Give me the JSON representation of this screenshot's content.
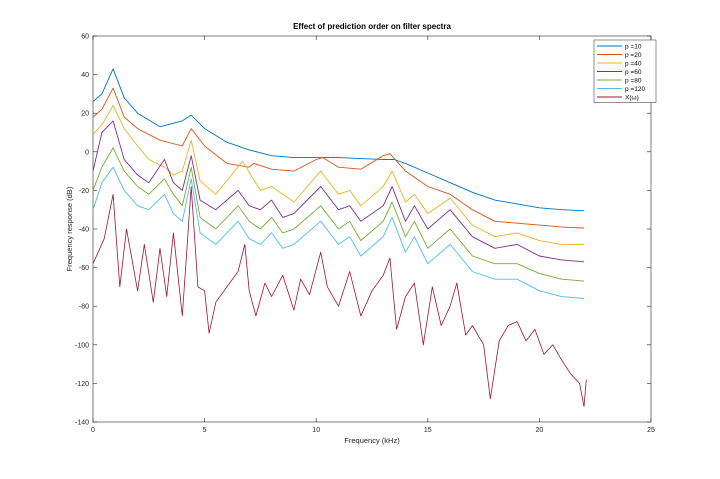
{
  "chart_data": {
    "type": "line",
    "title": "Effect of prediction order on filter spectra",
    "xlabel": "Frequency (kHz)",
    "ylabel": "Frequency response (dB)",
    "xlim": [
      0,
      25
    ],
    "ylim": [
      -140,
      60
    ],
    "xticks": [
      0,
      5,
      10,
      15,
      20,
      25
    ],
    "yticks": [
      -140,
      -120,
      -100,
      -80,
      -60,
      -40,
      -20,
      0,
      20,
      40,
      60
    ],
    "grid": false,
    "legend_position": "top-right",
    "series": [
      {
        "name": "p =10",
        "color": "#0072BD",
        "x": [
          0,
          0.4,
          0.9,
          1.4,
          2,
          3,
          4,
          4.4,
          5,
          6,
          7,
          8,
          9,
          10,
          11,
          12,
          13,
          13.5,
          14,
          15,
          16,
          17,
          18,
          19,
          20,
          21,
          22
        ],
        "y": [
          26,
          30,
          43,
          28,
          20,
          13,
          16,
          19,
          12,
          5,
          1,
          -2,
          -3,
          -3,
          -3,
          -3.5,
          -4,
          -4,
          -6,
          -11,
          -16,
          -21,
          -25,
          -27,
          -29,
          -30,
          -30.5
        ]
      },
      {
        "name": "p =20",
        "color": "#D95319",
        "x": [
          0,
          0.4,
          0.9,
          1.4,
          2,
          3,
          4,
          4.4,
          5,
          6,
          7,
          7.2,
          8,
          9,
          10,
          10.3,
          11,
          12,
          13,
          13.3,
          14,
          15,
          16,
          17,
          18,
          19,
          20,
          21,
          22
        ],
        "y": [
          18,
          22,
          33,
          18,
          12,
          6,
          3,
          12,
          3,
          -6,
          -8,
          -6,
          -9,
          -10,
          -4,
          -3,
          -8,
          -9,
          -2,
          -1,
          -10,
          -18,
          -22,
          -30,
          -36,
          -37,
          -38,
          -39,
          -39.5
        ]
      },
      {
        "name": "p =40",
        "color": "#EDB120",
        "x": [
          0,
          0.4,
          0.9,
          1.4,
          2,
          2.5,
          3.2,
          3.6,
          4,
          4.4,
          4.8,
          5.5,
          6.7,
          7.5,
          8,
          8.5,
          9,
          10.2,
          11,
          11.5,
          12,
          13,
          13.4,
          14,
          14.4,
          15,
          16,
          17,
          18,
          19,
          20,
          21,
          22
        ],
        "y": [
          9,
          14,
          24,
          12,
          3,
          -4,
          -8,
          -12,
          -10,
          6,
          -15,
          -22,
          -5,
          -20,
          -18,
          -22,
          -26,
          -10,
          -22,
          -20,
          -28,
          -18,
          -10,
          -26,
          -22,
          -32,
          -24,
          -38,
          -44,
          -42,
          -46,
          -48,
          -48
        ]
      },
      {
        "name": "p =60",
        "color": "#7E2F8E",
        "x": [
          0,
          0.4,
          0.9,
          1.4,
          2,
          2.5,
          3.2,
          3.6,
          4,
          4.4,
          4.8,
          5.5,
          6.5,
          7,
          7.5,
          8,
          8.5,
          9,
          10.2,
          11,
          11.5,
          12,
          13,
          13.4,
          14,
          14.4,
          15,
          16,
          17,
          18,
          19,
          20,
          21,
          22
        ],
        "y": [
          -10,
          10,
          16,
          -4,
          -12,
          -16,
          -4,
          -16,
          -20,
          -2,
          -25,
          -30,
          -20,
          -28,
          -30,
          -25,
          -34,
          -32,
          -18,
          -30,
          -28,
          -36,
          -28,
          -18,
          -36,
          -28,
          -40,
          -30,
          -44,
          -50,
          -48,
          -54,
          -56,
          -57
        ]
      },
      {
        "name": "p =80",
        "color": "#77AC30",
        "x": [
          0,
          0.4,
          0.9,
          1.4,
          2,
          2.5,
          3.2,
          3.6,
          4,
          4.4,
          4.8,
          5.5,
          6.5,
          7,
          7.5,
          8,
          8.5,
          9,
          10.2,
          11,
          11.5,
          12,
          13,
          13.4,
          14,
          14.4,
          15,
          16,
          17,
          18,
          19,
          20,
          21,
          22
        ],
        "y": [
          -20,
          -8,
          2,
          -10,
          -18,
          -22,
          -14,
          -22,
          -28,
          -8,
          -34,
          -40,
          -28,
          -36,
          -40,
          -34,
          -42,
          -40,
          -28,
          -40,
          -36,
          -46,
          -36,
          -26,
          -44,
          -36,
          -50,
          -40,
          -54,
          -58,
          -58,
          -63,
          -66,
          -67
        ]
      },
      {
        "name": "p =120",
        "color": "#4DBEEE",
        "x": [
          0,
          0.4,
          0.9,
          1.4,
          2,
          2.5,
          3.2,
          3.6,
          4,
          4.4,
          4.8,
          5.5,
          6.5,
          7,
          7.5,
          8,
          8.5,
          9,
          10.2,
          11,
          11.5,
          12,
          13,
          13.4,
          14,
          14.4,
          15,
          16,
          17,
          18,
          19,
          20,
          21,
          22
        ],
        "y": [
          -30,
          -16,
          -8,
          -20,
          -28,
          -30,
          -22,
          -32,
          -36,
          -14,
          -42,
          -48,
          -36,
          -45,
          -48,
          -42,
          -50,
          -48,
          -36,
          -48,
          -44,
          -54,
          -44,
          -34,
          -52,
          -44,
          -58,
          -48,
          -62,
          -66,
          -66,
          -72,
          -75,
          -76
        ]
      },
      {
        "name": "X(ω)",
        "color": "#A2142F",
        "x": [
          0,
          0.5,
          0.9,
          1.2,
          1.5,
          2,
          2.3,
          2.7,
          3,
          3.3,
          3.6,
          4,
          4.4,
          4.7,
          5,
          5.2,
          5.5,
          6,
          6.5,
          6.8,
          7,
          7.3,
          7.7,
          8,
          8.5,
          9,
          9.3,
          9.7,
          10.2,
          10.5,
          11,
          11.5,
          12,
          12.5,
          13,
          13.3,
          13.6,
          14,
          14.4,
          14.8,
          15.2,
          15.6,
          16,
          16.3,
          16.7,
          17,
          17.5,
          17.8,
          18.2,
          18.6,
          19,
          19.4,
          19.8,
          20.2,
          20.6,
          21,
          21.4,
          21.8,
          22,
          22.1
        ],
        "y": [
          -58,
          -45,
          -22,
          -70,
          -40,
          -72,
          -48,
          -78,
          -50,
          -75,
          -42,
          -85,
          -18,
          -70,
          -72,
          -94,
          -78,
          -70,
          -62,
          -48,
          -72,
          -85,
          -68,
          -75,
          -64,
          -82,
          -66,
          -74,
          -52,
          -70,
          -80,
          -62,
          -85,
          -72,
          -64,
          -55,
          -92,
          -75,
          -68,
          -100,
          -70,
          -90,
          -80,
          -68,
          -95,
          -90,
          -100,
          -128,
          -98,
          -90,
          -88,
          -98,
          -92,
          -105,
          -100,
          -108,
          -115,
          -120,
          -132,
          -118
        ]
      }
    ]
  }
}
